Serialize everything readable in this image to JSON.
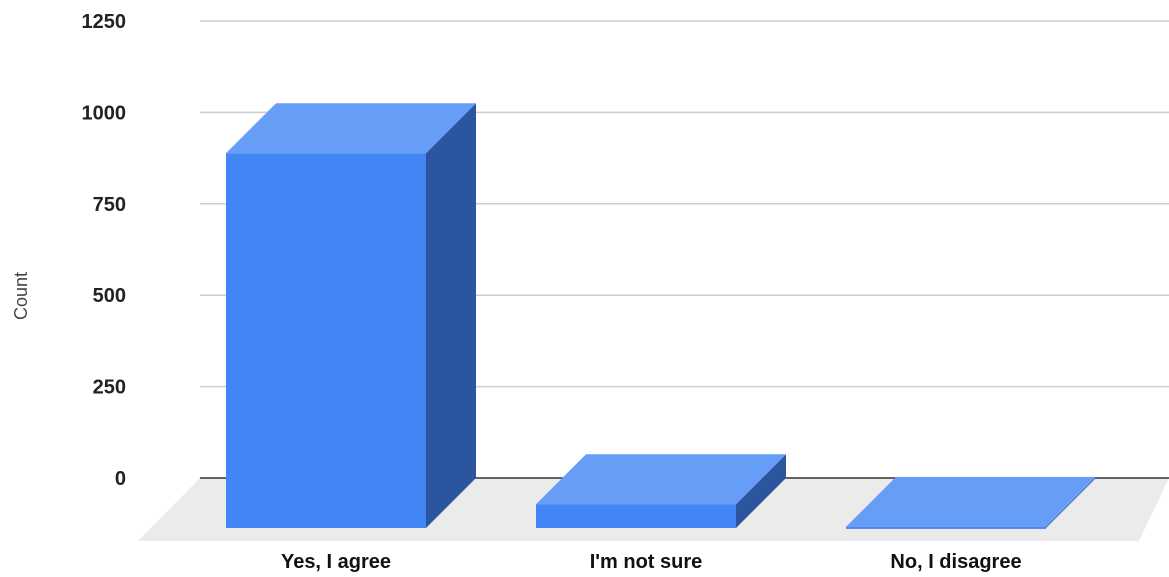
{
  "chart_data": {
    "type": "bar",
    "style": "3d",
    "categories": [
      "Yes, I agree",
      "I'm not sure",
      "No, I disagree"
    ],
    "values": [
      1025,
      65,
      3
    ],
    "xlabel": "",
    "ylabel": "Count",
    "ylim": [
      0,
      1250
    ],
    "yticks": [
      "0",
      "250",
      "500",
      "750",
      "1000",
      "1250"
    ],
    "grid": true,
    "legend": "none",
    "colors": {
      "bar_front": "#4285f4",
      "bar_top": "#669df6",
      "bar_side": "#2c55a0",
      "floor": "#ebebeb",
      "gridline": "#cccccc",
      "baseline": "#333333"
    }
  }
}
